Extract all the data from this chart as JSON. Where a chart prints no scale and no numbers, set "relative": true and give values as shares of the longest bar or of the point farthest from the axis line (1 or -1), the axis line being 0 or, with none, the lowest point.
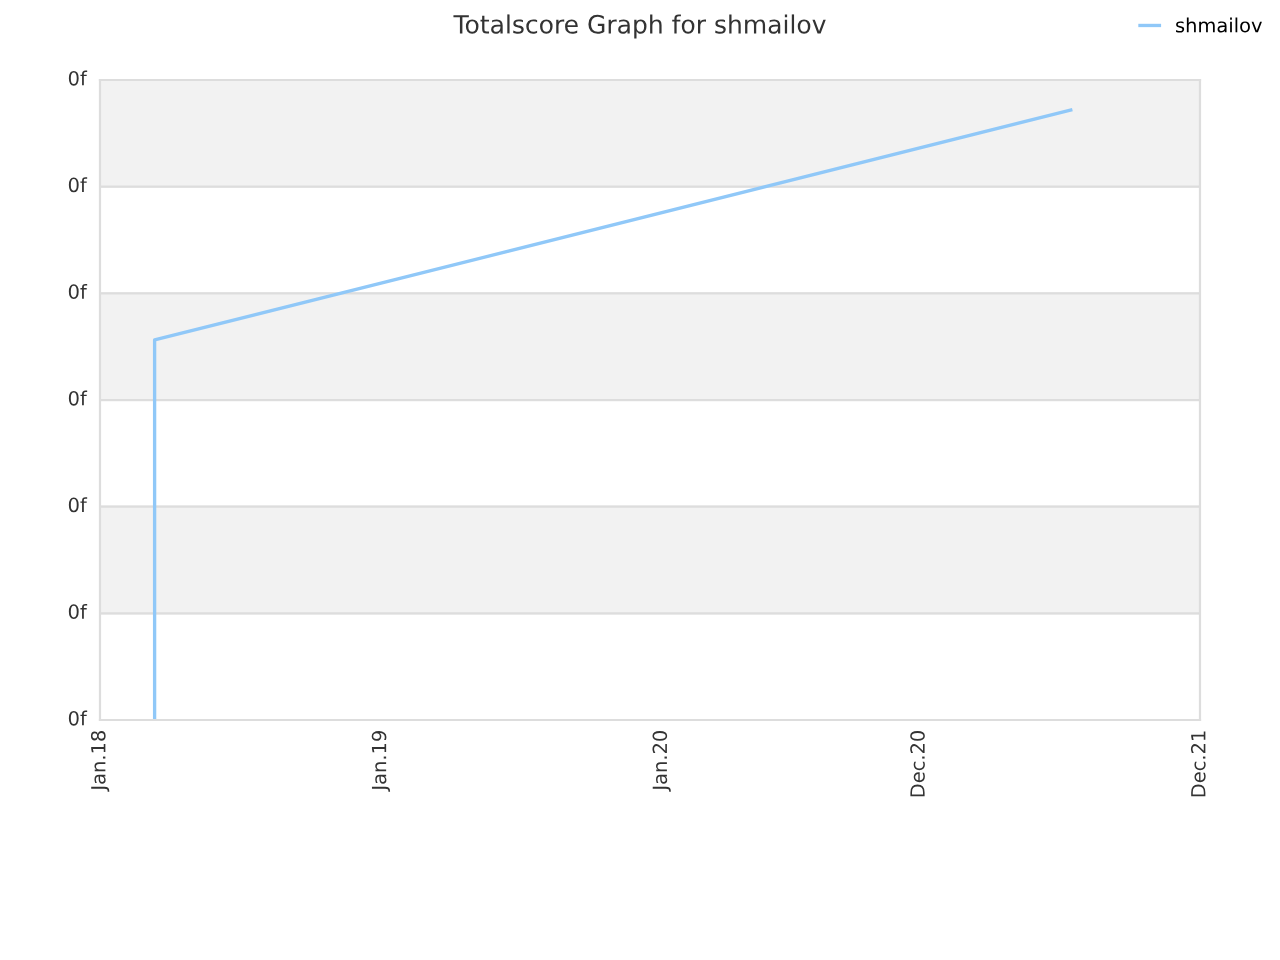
{
  "chart_data": {
    "type": "line",
    "title": "Totalscore Graph for shmailov",
    "relative": true,
    "xlim": [
      "2018-01",
      "2021-12"
    ],
    "xticks": [
      {
        "value": "2018-01",
        "label": "Jan.18"
      },
      {
        "value": "2019-01",
        "label": "Jan.19"
      },
      {
        "value": "2020-01",
        "label": "Jan.20"
      },
      {
        "value": "2020-12",
        "label": "Dec.20"
      },
      {
        "value": "2021-12",
        "label": "Dec.21"
      }
    ],
    "annotations": [
      "0f",
      "0f",
      "0f",
      "0f",
      "0f",
      "0f",
      "0f"
    ],
    "series": [
      {
        "name": "shmailov",
        "color": "#90c8f8",
        "x": [
          "2018-03-13",
          "2018-03-13",
          "2021-06-16"
        ],
        "values": [
          0,
          0.623,
          1
        ]
      }
    ],
    "grid": "y",
    "legend": "top right",
    "marker": "none",
    "line_style": "solid"
  }
}
